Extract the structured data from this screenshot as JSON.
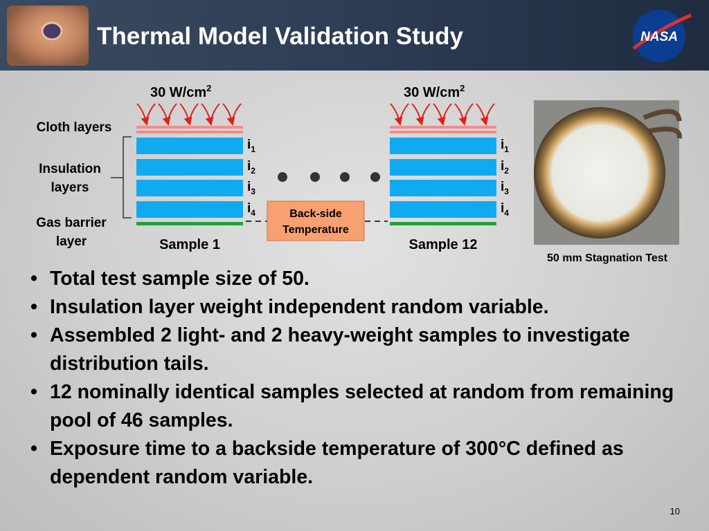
{
  "header": {
    "title": "Thermal Model Validation Study",
    "logo": "NASA"
  },
  "diagram": {
    "layer_labels": {
      "cloth": "Cloth layers",
      "insulation": [
        "Insulation",
        "layers"
      ],
      "gas_barrier": [
        "Gas barrier",
        "layer"
      ]
    },
    "samples": [
      {
        "flux": "30 W/cm",
        "flux_sup": "2",
        "name": "Sample 1",
        "layers": [
          {
            "base": "i",
            "sub": "1"
          },
          {
            "base": "i",
            "sub": "2"
          },
          {
            "base": "i",
            "sub": "3"
          },
          {
            "base": "i",
            "sub": "4"
          }
        ]
      },
      {
        "flux": "30 W/cm",
        "flux_sup": "2",
        "name": "Sample 12",
        "layers": [
          {
            "base": "i",
            "sub": "1"
          },
          {
            "base": "i",
            "sub": "2"
          },
          {
            "base": "i",
            "sub": "3"
          },
          {
            "base": "i",
            "sub": "4"
          }
        ]
      }
    ],
    "backside": [
      "Back-side",
      "Temperature"
    ],
    "photo_caption": "50 mm Stagnation Test"
  },
  "bullets": [
    "Total test sample size of 50.",
    "Insulation layer weight independent random variable.",
    "Assembled 2 light- and 2 heavy-weight samples to investigate distribution tails.",
    "12 nominally identical samples selected at random from remaining pool of 46 samples.",
    "Exposure time to a backside temperature of 300°C defined as dependent random variable."
  ],
  "page_number": "10"
}
